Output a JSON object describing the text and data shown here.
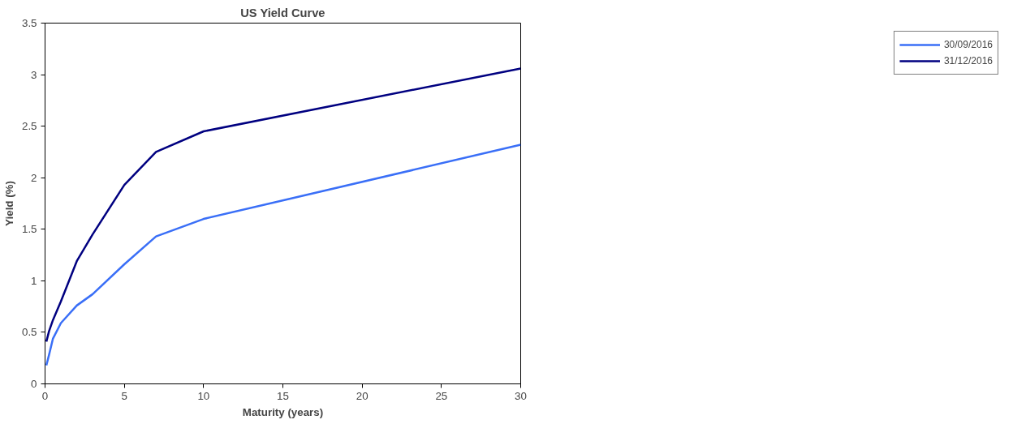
{
  "chart_data": {
    "type": "line",
    "title": "US Yield Curve",
    "xlabel": "Maturity (years)",
    "ylabel": "Yield (%)",
    "x": [
      0.083,
      0.25,
      0.5,
      1,
      2,
      3,
      5,
      7,
      10,
      30
    ],
    "series": [
      {
        "name": "30/09/2016",
        "color": "#3a6ff7",
        "values": [
          0.18,
          0.28,
          0.44,
          0.59,
          0.76,
          0.87,
          1.16,
          1.43,
          1.6,
          2.32
        ]
      },
      {
        "name": "31/12/2016",
        "color": "#000080",
        "values": [
          0.41,
          0.51,
          0.62,
          0.8,
          1.19,
          1.45,
          1.93,
          2.25,
          2.45,
          3.06
        ]
      }
    ],
    "xlim": [
      0,
      30
    ],
    "xticks": [
      0,
      5,
      10,
      15,
      20,
      25,
      30
    ],
    "ylim": [
      0,
      3.5
    ],
    "yticks": [
      0,
      0.5,
      1,
      1.5,
      2,
      2.5,
      3,
      3.5
    ],
    "grid": false,
    "legend": "right",
    "marker": "none",
    "line_style": "solid"
  }
}
